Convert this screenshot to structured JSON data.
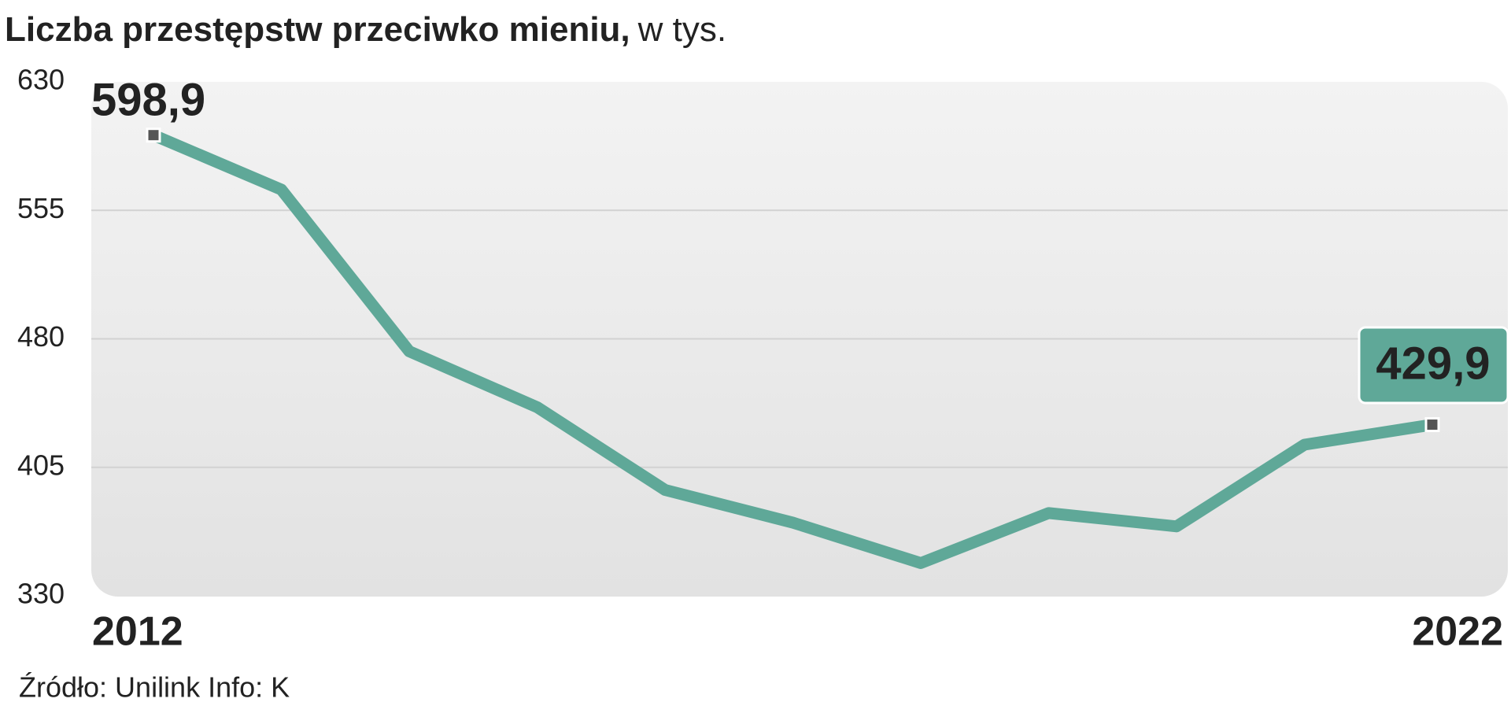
{
  "chart_data": {
    "type": "line",
    "title": "Liczba przestępstw przeciwko mieniu,",
    "subtitle": "w tys.",
    "source": "Źródło: Unilink Info: K",
    "categories": [
      "2012",
      null,
      null,
      null,
      null,
      null,
      null,
      null,
      null,
      null,
      "2022"
    ],
    "values": [
      598.9,
      567.1,
      472.7,
      440.1,
      391.8,
      372.7,
      349.1,
      378.3,
      370.5,
      418.2,
      429.9
    ],
    "value_labels": [
      "598,9",
      null,
      null,
      null,
      null,
      null,
      null,
      null,
      null,
      null,
      "429,9"
    ],
    "color": "#5fa898",
    "ylim": [
      330,
      630
    ],
    "yticks": [
      630,
      555,
      480,
      405,
      330
    ],
    "grid": true
  }
}
